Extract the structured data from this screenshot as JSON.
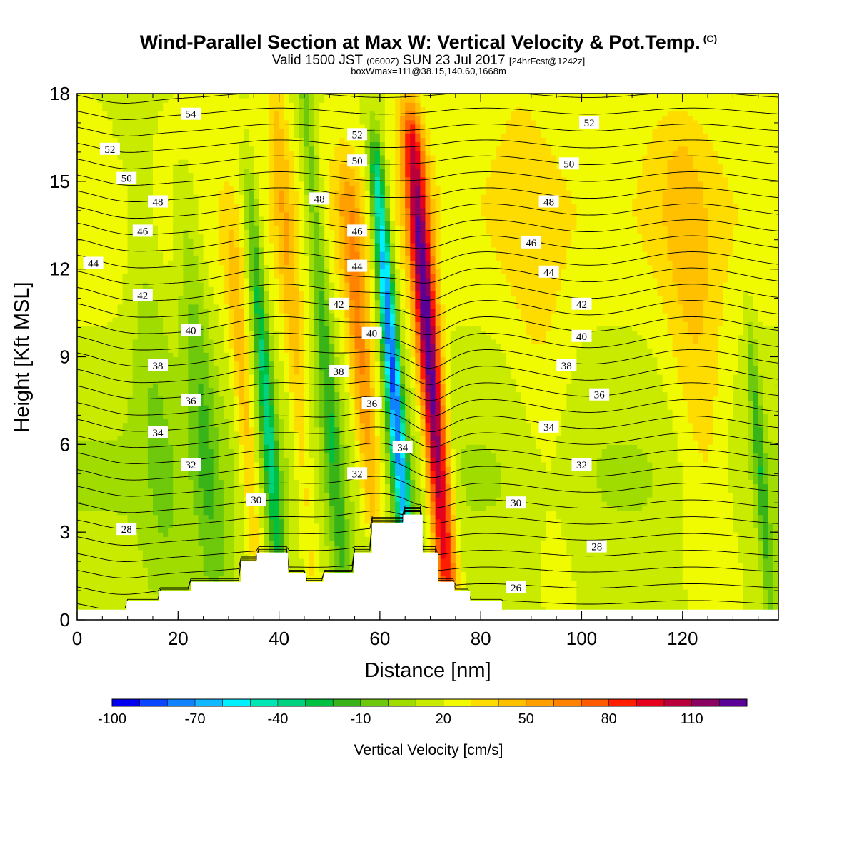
{
  "header": {
    "title": "Wind-Parallel Section at Max W: Vertical Velocity & Pot.Temp.",
    "copyright": "(C)",
    "valid_prefix": "Valid 1500 JST",
    "valid_utc": "(0600Z)",
    "valid_date": "SUN 23 Jul 2017",
    "forecast": "[24hrFcst@1242z]",
    "box_info": "boxWmax=111@38.15,140.60,1668m"
  },
  "chart_data": {
    "type": "heatmap",
    "xlabel": "Distance [nm]",
    "ylabel": "Height [Kft MSL]",
    "xlim": [
      0,
      139
    ],
    "ylim": [
      0,
      18
    ],
    "x_ticks": [
      0,
      20,
      40,
      60,
      80,
      100,
      120
    ],
    "y_ticks": [
      0,
      3,
      6,
      9,
      12,
      15,
      18
    ],
    "colorbar": {
      "title": "Vertical Velocity [cm/s]",
      "labels": [
        "-100",
        "-70",
        "-40",
        "-10",
        "20",
        "50",
        "80",
        "110"
      ],
      "colors": [
        "#0000f0",
        "#0a46ff",
        "#0f82ff",
        "#10b9ff",
        "#00f0ff",
        "#00e6b4",
        "#00d280",
        "#00c040",
        "#38b418",
        "#6ec80c",
        "#a0dc00",
        "#c8eb00",
        "#f0fa00",
        "#ffdc00",
        "#ffc000",
        "#ffa000",
        "#ff8200",
        "#ff5a00",
        "#ff1e00",
        "#e6001e",
        "#b9003c",
        "#8c0064",
        "#5a0096"
      ]
    },
    "terrain_kft": [
      [
        0,
        0.35
      ],
      [
        9.8,
        0.65
      ],
      [
        16.2,
        1.0
      ],
      [
        22.5,
        1.3
      ],
      [
        32.4,
        2.0
      ],
      [
        35.6,
        2.3
      ],
      [
        41.8,
        1.6
      ],
      [
        45.4,
        1.3
      ],
      [
        48.8,
        1.6
      ],
      [
        54.9,
        2.3
      ],
      [
        58.4,
        3.3
      ],
      [
        64.6,
        3.6
      ],
      [
        68.5,
        2.3
      ],
      [
        71.5,
        1.3
      ],
      [
        74.8,
        1.0
      ],
      [
        77.9,
        0.65
      ],
      [
        84.2,
        0.35
      ],
      [
        139,
        0.35
      ]
    ],
    "w_bands_cm_s": [
      {
        "x": 64.5,
        "ztop": 15.0,
        "sigma_x": 1.6,
        "peak": -100
      },
      {
        "x": 72.0,
        "ztop": 16.0,
        "sigma_x": 2.2,
        "peak": 111
      },
      {
        "x": 58.5,
        "ztop": 14.0,
        "sigma_x": 2.4,
        "peak": 45
      },
      {
        "x": 51.5,
        "ztop": 18.0,
        "sigma_x": 1.8,
        "peak": -35
      },
      {
        "x": 45.5,
        "ztop": 18.0,
        "sigma_x": 2.0,
        "peak": 25
      },
      {
        "x": 39.0,
        "ztop": 14.0,
        "sigma_x": 1.6,
        "peak": -50
      },
      {
        "x": 34.5,
        "ztop": 12.0,
        "sigma_x": 1.8,
        "peak": 30
      },
      {
        "x": 26.0,
        "ztop": 14.0,
        "sigma_x": 3.0,
        "peak": -25
      },
      {
        "x": 17.0,
        "ztop": 18.0,
        "sigma_x": 4.0,
        "peak": -15
      },
      {
        "x": 125.0,
        "ztop": 16.0,
        "sigma_x": 6.0,
        "peak": 22
      },
      {
        "x": 94.0,
        "ztop": 18.0,
        "sigma_x": 6.0,
        "peak": 12
      },
      {
        "x": 136.0,
        "ztop": 9.0,
        "sigma_x": 1.2,
        "peak": -30
      }
    ],
    "theta_contours": [
      {
        "value": "54",
        "x": 22.5,
        "z": 17.3
      },
      {
        "value": "52",
        "x": 6.5,
        "z": 16.1
      },
      {
        "value": "52",
        "x": 55.5,
        "z": 16.6
      },
      {
        "value": "52",
        "x": 101.5,
        "z": 17.0
      },
      {
        "value": "50",
        "x": 9.8,
        "z": 15.1
      },
      {
        "value": "50",
        "x": 55.5,
        "z": 15.7
      },
      {
        "value": "50",
        "x": 97.5,
        "z": 15.6
      },
      {
        "value": "48",
        "x": 16.0,
        "z": 14.3
      },
      {
        "value": "48",
        "x": 48.0,
        "z": 14.4
      },
      {
        "value": "48",
        "x": 93.5,
        "z": 14.3
      },
      {
        "value": "46",
        "x": 13.0,
        "z": 13.3
      },
      {
        "value": "46",
        "x": 55.5,
        "z": 13.3
      },
      {
        "value": "46",
        "x": 90.0,
        "z": 12.9
      },
      {
        "value": "44",
        "x": 3.2,
        "z": 12.2
      },
      {
        "value": "44",
        "x": 55.5,
        "z": 12.1
      },
      {
        "value": "44",
        "x": 93.5,
        "z": 11.9
      },
      {
        "value": "42",
        "x": 13.0,
        "z": 11.1
      },
      {
        "value": "42",
        "x": 51.8,
        "z": 10.8
      },
      {
        "value": "42",
        "x": 100.0,
        "z": 10.8
      },
      {
        "value": "40",
        "x": 22.5,
        "z": 9.9
      },
      {
        "value": "40",
        "x": 58.4,
        "z": 9.8
      },
      {
        "value": "40",
        "x": 100.0,
        "z": 9.7
      },
      {
        "value": "38",
        "x": 16.0,
        "z": 8.7
      },
      {
        "value": "38",
        "x": 51.8,
        "z": 8.5
      },
      {
        "value": "38",
        "x": 97.0,
        "z": 8.7
      },
      {
        "value": "36",
        "x": 22.5,
        "z": 7.5
      },
      {
        "value": "36",
        "x": 58.4,
        "z": 7.4
      },
      {
        "value": "36",
        "x": 103.5,
        "z": 7.7
      },
      {
        "value": "34",
        "x": 16.0,
        "z": 6.4
      },
      {
        "value": "34",
        "x": 64.5,
        "z": 5.9
      },
      {
        "value": "34",
        "x": 93.5,
        "z": 6.6
      },
      {
        "value": "32",
        "x": 22.5,
        "z": 5.3
      },
      {
        "value": "32",
        "x": 55.5,
        "z": 5.0
      },
      {
        "value": "32",
        "x": 100.0,
        "z": 5.3
      },
      {
        "value": "30",
        "x": 35.5,
        "z": 4.1
      },
      {
        "value": "30",
        "x": 87.0,
        "z": 4.0
      },
      {
        "value": "28",
        "x": 9.8,
        "z": 3.1
      },
      {
        "value": "28",
        "x": 103.0,
        "z": 2.5
      },
      {
        "value": "26",
        "x": 87.0,
        "z": 1.1
      }
    ]
  }
}
